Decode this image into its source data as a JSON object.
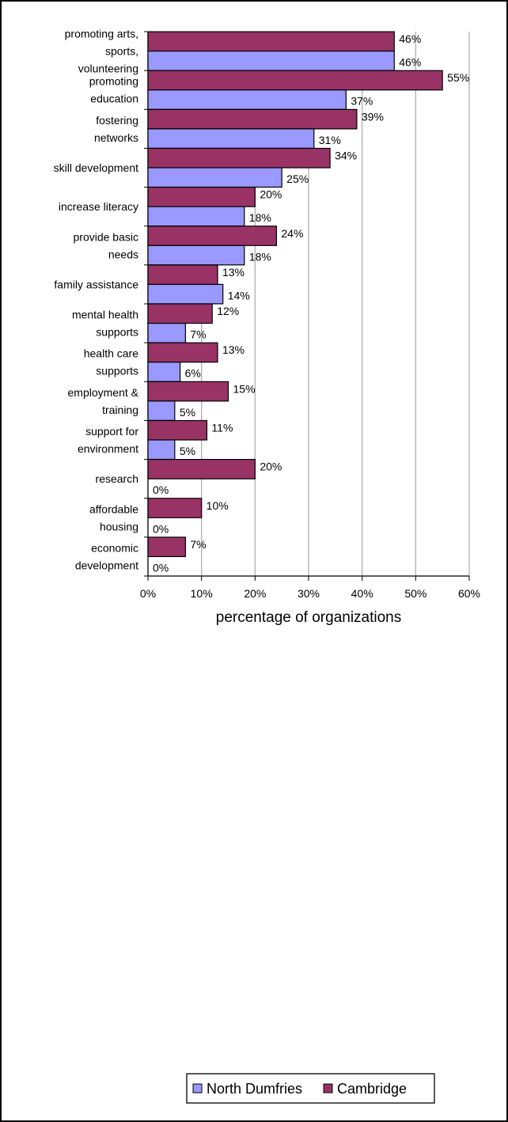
{
  "chart_data": {
    "type": "bar",
    "orientation": "horizontal",
    "categories": [
      "promoting arts, sports, volunteering",
      "promoting education",
      "fostering networks",
      "skill development",
      "increase literacy",
      "provide basic needs",
      "family assistance",
      "mental health supports",
      "health care supports",
      "employment & training",
      "support for environment",
      "research",
      "affordable housing",
      "economic development"
    ],
    "category_lines": [
      [
        "promoting arts,",
        "sports,",
        "volunteering"
      ],
      [
        "promoting",
        "education"
      ],
      [
        "fostering",
        "networks"
      ],
      [
        "skill development"
      ],
      [
        "increase literacy"
      ],
      [
        "provide basic",
        "needs"
      ],
      [
        "family assistance"
      ],
      [
        "mental health",
        "supports"
      ],
      [
        "health care",
        "supports"
      ],
      [
        "employment &",
        "training"
      ],
      [
        "support for",
        "environment"
      ],
      [
        "research"
      ],
      [
        "affordable",
        "housing"
      ],
      [
        "economic",
        "development"
      ]
    ],
    "series": [
      {
        "name": "Cambridge",
        "color": "#993366",
        "values": [
          46,
          55,
          39,
          34,
          20,
          24,
          13,
          12,
          13,
          15,
          11,
          20,
          10,
          7
        ]
      },
      {
        "name": "North Dumfries",
        "color": "#9999FF",
        "values": [
          46,
          37,
          31,
          25,
          18,
          18,
          14,
          7,
          6,
          5,
          5,
          0,
          0,
          0
        ]
      }
    ],
    "value_labels": {
      "Cambridge": [
        "46%",
        "55%",
        "39%",
        "34%",
        "20%",
        "24%",
        "13%",
        "12%",
        "13%",
        "15%",
        "11%",
        "20%",
        "10%",
        "7%"
      ],
      "North Dumfries": [
        "46%",
        "37%",
        "31%",
        "25%",
        "18%",
        "18%",
        "14%",
        "7%",
        "6%",
        "5%",
        "5%",
        "0%",
        "0%",
        "0%"
      ]
    },
    "xlim": [
      0,
      60
    ],
    "xticks": [
      "0%",
      "10%",
      "20%",
      "30%",
      "40%",
      "50%",
      "60%"
    ],
    "xlabel": "percentage of organizations",
    "ylabel": "",
    "title": "",
    "grid": "vertical",
    "legend": {
      "position": "bottom",
      "entries": [
        "North Dumfries",
        "Cambridge"
      ]
    }
  }
}
